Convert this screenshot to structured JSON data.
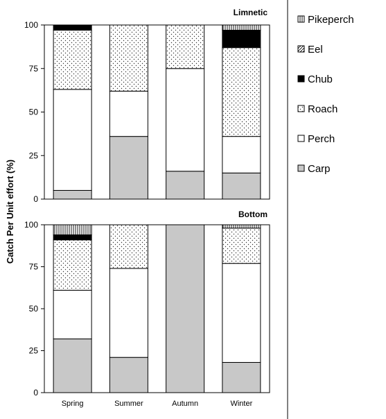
{
  "figure": {
    "ylabel": "Catch Per Unit effort (%)",
    "legend_placement": "right",
    "colors": {
      "Carp": "#c8c8c8",
      "Perch": "#ffffff",
      "Roach": "#ffffff",
      "Chub": "#000000",
      "Eel": "#ffffff",
      "Pikeperch": "#ffffff",
      "outline": "#000000"
    },
    "patterns": {
      "Carp": "solid-gray",
      "Perch": "solid-white",
      "Roach": "dots",
      "Chub": "solid-black",
      "Eel": "diagonal-hatch",
      "Pikeperch": "vertical-lines"
    },
    "legend_order": [
      "Pikeperch",
      "Eel",
      "Chub",
      "Roach",
      "Perch",
      "Carp"
    ]
  },
  "chart_data": [
    {
      "type": "bar",
      "stacked": true,
      "title": "Limnetic",
      "categories": [
        "Spring",
        "Summer",
        "Autumn",
        "Winter"
      ],
      "ylim": [
        0,
        100
      ],
      "yticks": [
        0,
        25,
        50,
        75,
        100
      ],
      "grid": false,
      "series": [
        {
          "name": "Carp",
          "values": [
            5,
            36,
            16,
            15
          ]
        },
        {
          "name": "Perch",
          "values": [
            58,
            26,
            59,
            21
          ]
        },
        {
          "name": "Roach",
          "values": [
            34,
            38,
            25,
            51
          ]
        },
        {
          "name": "Chub",
          "values": [
            3,
            0,
            0,
            10
          ]
        },
        {
          "name": "Eel",
          "values": [
            0,
            0,
            0,
            0
          ]
        },
        {
          "name": "Pikeperch",
          "values": [
            0,
            0,
            0,
            3
          ]
        }
      ]
    },
    {
      "type": "bar",
      "stacked": true,
      "title": "Bottom",
      "categories": [
        "Spring",
        "Summer",
        "Autumn",
        "Winter"
      ],
      "ylim": [
        0,
        100
      ],
      "yticks": [
        0,
        25,
        50,
        75,
        100
      ],
      "grid": false,
      "series": [
        {
          "name": "Carp",
          "values": [
            32,
            21,
            100,
            18
          ]
        },
        {
          "name": "Perch",
          "values": [
            29,
            53,
            0,
            59
          ]
        },
        {
          "name": "Roach",
          "values": [
            30,
            26,
            0,
            21
          ]
        },
        {
          "name": "Chub",
          "values": [
            3,
            0,
            0,
            0
          ]
        },
        {
          "name": "Eel",
          "values": [
            0,
            0,
            0,
            0
          ]
        },
        {
          "name": "Pikeperch",
          "values": [
            6,
            0,
            0,
            2
          ]
        }
      ]
    }
  ]
}
